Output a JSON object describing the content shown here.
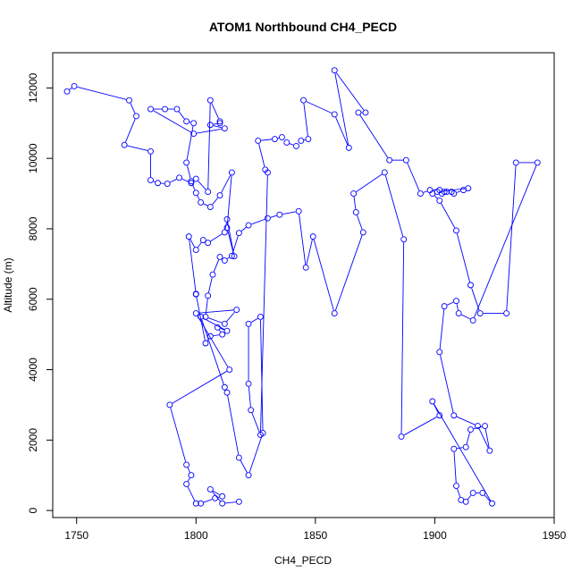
{
  "chart_data": {
    "type": "scatter",
    "title": "ATOM1 Northbound CH4_PECD",
    "xlabel": "CH4_PECD",
    "ylabel": "Altitude (m)",
    "xlim": [
      1740,
      1950
    ],
    "ylim": [
      -200,
      13000
    ],
    "xticks": [
      "1750",
      "1800",
      "1850",
      "1900",
      "1950"
    ],
    "yticks": [
      "0",
      "2000",
      "4000",
      "6000",
      "8000",
      "10000",
      "12000"
    ],
    "grid": false,
    "legend": "none",
    "series_style": {
      "color": "#0000ff",
      "marker": "open-circle",
      "connect": true
    },
    "series": [
      {
        "x": [
          1746,
          1749,
          1772,
          1775,
          1770,
          1781,
          1781,
          1784,
          1788,
          1793,
          1798,
          1800,
          1805,
          1806,
          1810,
          1810,
          1806,
          1812,
          1799,
          1781,
          1787,
          1792,
          1796,
          1799,
          1796,
          1798,
          1800,
          1802,
          1806,
          1810,
          1815,
          1813,
          1816,
          1813,
          1812,
          1805,
          1803,
          1800,
          1797,
          1800,
          1800,
          1804,
          1806,
          1811,
          1809,
          1813,
          1802,
          1812,
          1813,
          1818,
          1822,
          1828,
          1827,
          1822,
          1822,
          1823,
          1827,
          1830,
          1829,
          1826,
          1833,
          1836,
          1838,
          1842,
          1844,
          1847,
          1845,
          1858,
          1864,
          1858,
          1871,
          1868,
          1881,
          1888,
          1894,
          1898,
          1902,
          1904,
          1903,
          1905,
          1907,
          1908,
          1912,
          1914,
          1901,
          1899,
          1902,
          1909,
          1915,
          1919,
          1930,
          1934,
          1943,
          1916,
          1910,
          1909,
          1904,
          1902,
          1908,
          1918,
          1923,
          1921,
          1915,
          1913,
          1908,
          1909,
          1911,
          1913,
          1916,
          1920,
          1924,
          1899,
          1902,
          1886,
          1887,
          1879,
          1866,
          1867,
          1870,
          1858,
          1849,
          1846,
          1843,
          1835,
          1830,
          1822,
          1818,
          1815,
          1812,
          1810,
          1807,
          1805,
          1804,
          1812,
          1817,
          1800,
          1814,
          1789,
          1796,
          1798,
          1796,
          1800,
          1802,
          1808,
          1811,
          1806,
          1811,
          1818
        ],
        "y": [
          11900,
          12050,
          11650,
          11200,
          10380,
          10200,
          9380,
          9300,
          9280,
          9450,
          9300,
          9420,
          9050,
          11650,
          11050,
          11000,
          10950,
          10850,
          10700,
          11400,
          11400,
          11400,
          11050,
          11000,
          9880,
          9350,
          9020,
          8750,
          8620,
          8950,
          9600,
          8030,
          7220,
          8270,
          7900,
          7600,
          7680,
          7400,
          7780,
          6150,
          6140,
          4750,
          4950,
          5000,
          5200,
          5100,
          5500,
          3500,
          3350,
          1500,
          1000,
          2200,
          5500,
          5300,
          3600,
          2850,
          2150,
          9600,
          9680,
          10500,
          10550,
          10600,
          10450,
          10350,
          10500,
          10550,
          11650,
          11250,
          10300,
          12500,
          11300,
          11300,
          9950,
          9950,
          9000,
          9100,
          9100,
          9050,
          9000,
          9050,
          9050,
          9000,
          9100,
          9150,
          9050,
          9000,
          8800,
          7950,
          6400,
          5600,
          5600,
          9880,
          9880,
          5400,
          5600,
          5950,
          5800,
          4500,
          2700,
          2400,
          1700,
          2400,
          2300,
          1800,
          1750,
          700,
          300,
          250,
          500,
          500,
          200,
          3100,
          2700,
          2100,
          7700,
          9600,
          9000,
          8470,
          7900,
          5600,
          7780,
          6900,
          8500,
          8400,
          8300,
          8100,
          7880,
          7230,
          7100,
          7200,
          6700,
          6100,
          5500,
          5300,
          5700,
          5600,
          4000,
          3000,
          1300,
          1000,
          750,
          200,
          200,
          350,
          400,
          600,
          200,
          250
        ]
      }
    ]
  }
}
